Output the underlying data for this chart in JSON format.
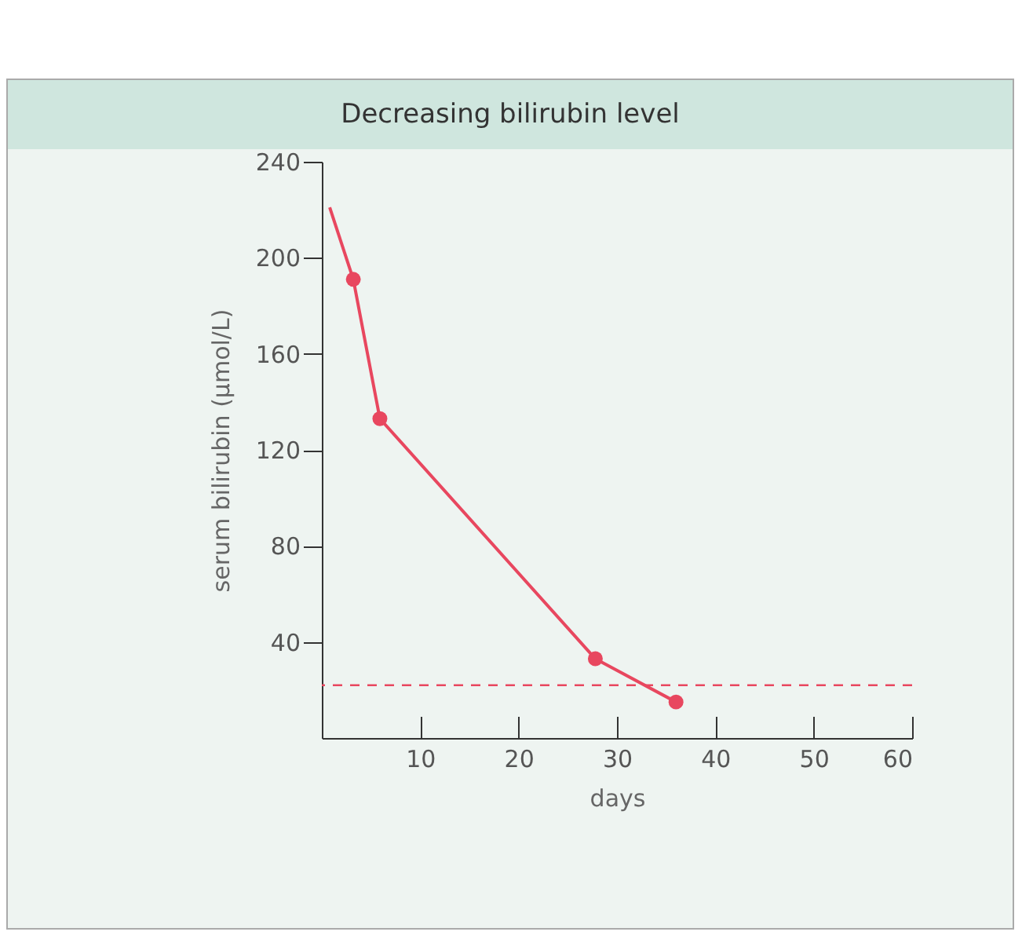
{
  "chart_data": {
    "type": "line",
    "title": "Decreasing bilirubin level",
    "xlabel": "days",
    "ylabel": "serum bilirubin (µmol/L)",
    "series": [
      {
        "color": "#e8475f",
        "x": [
          0.8,
          3.2
        ],
        "values": [
          221,
          191
        ]
      },
      {
        "color": "#e8475f",
        "x": [
          3.2,
          5.9,
          27.8,
          36
        ],
        "values": [
          191,
          133,
          33,
          15
        ],
        "marker": "circle"
      }
    ],
    "xlim": [
      0,
      60
    ],
    "xticks": [
      10,
      20,
      30,
      40,
      50,
      60
    ],
    "ylim": [
      0,
      240
    ],
    "yticks": [
      40,
      80,
      120,
      160,
      200,
      240
    ],
    "ref_lines": [
      {
        "axis": "y",
        "value": 22,
        "color": "#e8475f",
        "line_style": "dashed"
      }
    ],
    "grid": false
  }
}
